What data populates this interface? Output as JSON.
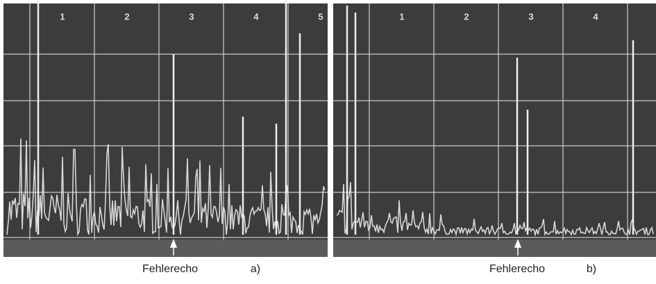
{
  "panels": [
    {
      "scale": [
        "1",
        "2",
        "3",
        "4",
        "5"
      ],
      "caption": "Fehlerecho",
      "tag": "a)"
    },
    {
      "scale": [
        "1",
        "2",
        "3",
        "4"
      ],
      "caption": "Fehlerecho",
      "tag": "b)"
    }
  ]
}
